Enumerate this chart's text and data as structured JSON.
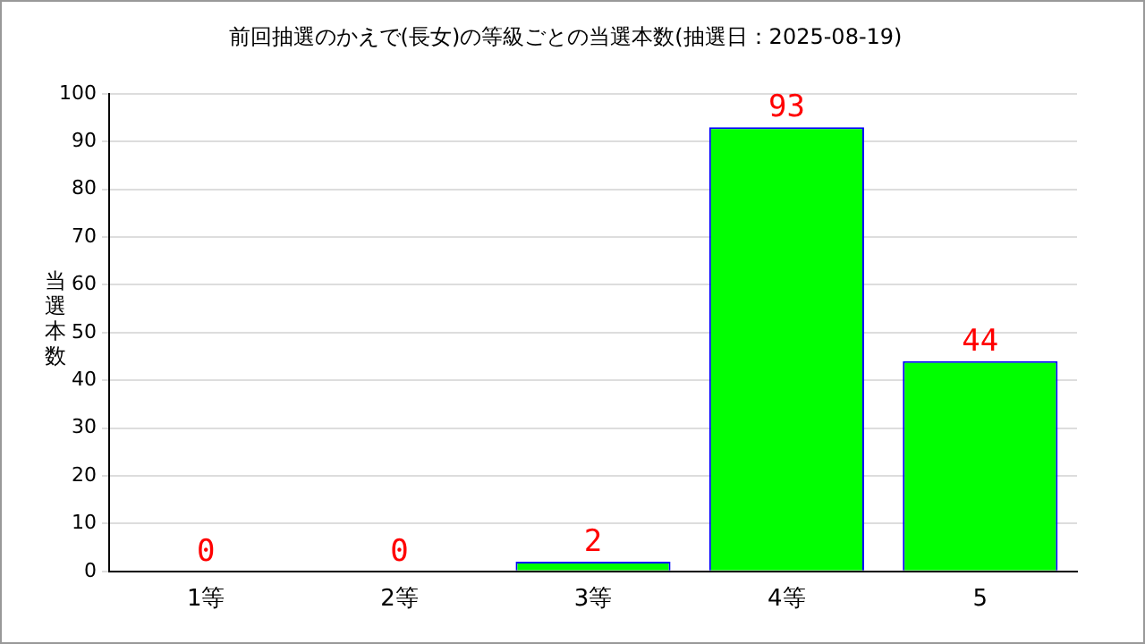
{
  "chart_data": {
    "type": "bar",
    "title": "前回抽選のかえで(長女)の等級ごとの当選本数(抽選日：2025-08-19)",
    "ylabel": "当選本数",
    "categories": [
      "1等",
      "2等",
      "3等",
      "4等",
      "5"
    ],
    "values": [
      0,
      0,
      2,
      93,
      44
    ],
    "color": "#00ff00",
    "ylim": [
      0,
      100
    ],
    "yticks": [
      0,
      10,
      20,
      30,
      40,
      50,
      60,
      70,
      80,
      90,
      100
    ],
    "grid": "y",
    "data_labels": true,
    "legend": false
  }
}
